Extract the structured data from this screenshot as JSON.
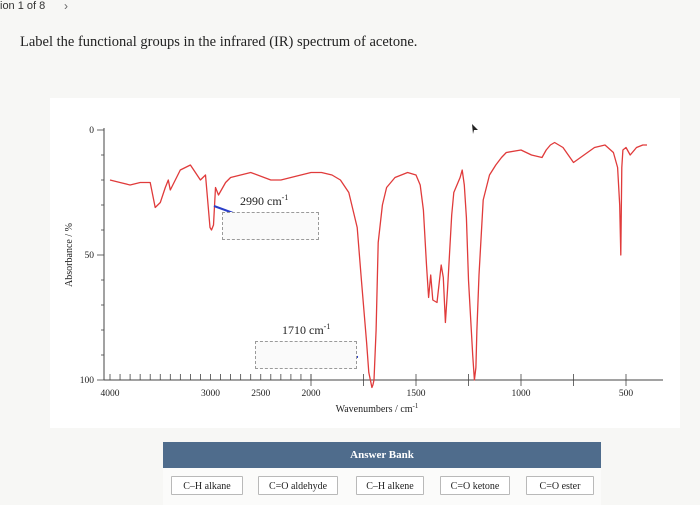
{
  "header": {
    "question_counter": "ion 1 of 8",
    "next_icon": "chevron-right-icon"
  },
  "question": {
    "prompt": "Label the functional groups in the infrared (IR) spectrum of acetone."
  },
  "chart_data": {
    "type": "line",
    "xlabel": "Wavenumbers / cm",
    "xlabel_sup": "-1",
    "ylabel": "Absorbance / %",
    "x_ticks": [
      "4000",
      "3000",
      "2500",
      "2000",
      "1500",
      "1000",
      "500"
    ],
    "y_ticks": [
      "0",
      "50",
      "100"
    ],
    "xlim": [
      4000,
      400
    ],
    "ylim": [
      0,
      100
    ],
    "x_scale": "piecewise (4000–2000 compressed, 2000–400 expanded)",
    "line_color": "#e03b3b",
    "x": [
      4000,
      3900,
      3800,
      3700,
      3600,
      3550,
      3500,
      3450,
      3420,
      3400,
      3300,
      3200,
      3100,
      3050,
      3020,
      3005,
      2990,
      2970,
      2950,
      2920,
      2850,
      2800,
      2600,
      2400,
      2300,
      2200,
      2100,
      2000,
      1950,
      1900,
      1860,
      1820,
      1780,
      1760,
      1735,
      1725,
      1715,
      1710,
      1705,
      1700,
      1690,
      1680,
      1660,
      1640,
      1600,
      1570,
      1540,
      1500,
      1480,
      1465,
      1450,
      1440,
      1430,
      1420,
      1400,
      1380,
      1370,
      1360,
      1350,
      1330,
      1320,
      1300,
      1290,
      1280,
      1270,
      1260,
      1250,
      1240,
      1230,
      1222,
      1215,
      1210,
      1200,
      1180,
      1150,
      1120,
      1093,
      1070,
      1000,
      950,
      900,
      880,
      860,
      840,
      800,
      750,
      700,
      650,
      600,
      560,
      540,
      530,
      525,
      520,
      515,
      500,
      480,
      450,
      420,
      400
    ],
    "y": [
      20,
      21,
      22,
      21,
      21,
      31,
      29,
      23,
      20,
      24,
      16,
      14,
      20,
      18,
      32,
      39,
      40,
      38,
      23,
      26,
      21,
      19,
      17,
      20,
      20,
      19,
      18,
      17,
      17,
      18,
      20,
      25,
      39,
      60,
      85,
      97,
      101,
      103,
      102,
      100,
      80,
      45,
      30,
      23,
      19,
      18,
      17,
      18,
      22,
      32,
      54,
      67,
      58,
      68,
      69,
      54,
      59,
      77,
      64,
      34,
      25,
      21,
      19,
      16,
      22,
      35,
      60,
      75,
      90,
      100,
      95,
      80,
      58,
      28,
      18,
      14,
      11,
      9,
      8,
      10,
      11,
      8,
      6,
      5,
      7,
      13,
      10,
      7,
      6,
      9,
      15,
      30,
      50,
      15,
      8,
      7,
      10,
      7,
      6,
      6
    ]
  },
  "annotations": [
    {
      "label": "2990 cm",
      "sup": "-1"
    },
    {
      "label": "1710 cm",
      "sup": "-1"
    }
  ],
  "answer_bank": {
    "title": "Answer Bank",
    "chips": [
      "C–H alkane",
      "C=O aldehyde",
      "C–H alkene",
      "C=O ketone",
      "C=O ester"
    ]
  }
}
